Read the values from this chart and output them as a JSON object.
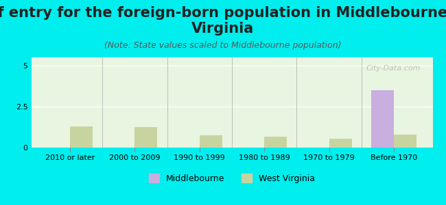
{
  "title": "Year of entry for the foreign-born population in Middlebourne, West\nVirginia",
  "subtitle": "(Note: State values scaled to Middlebourne population)",
  "categories": [
    "2010 or later",
    "2000 to 2009",
    "1990 to 1999",
    "1980 to 1989",
    "1970 to 1979",
    "Before 1970"
  ],
  "middlebourne_values": [
    0,
    0,
    0,
    0,
    0,
    3.5
  ],
  "west_virginia_values": [
    1.3,
    1.25,
    0.75,
    0.65,
    0.55,
    0.8
  ],
  "middlebourne_color": "#c9aee0",
  "west_virginia_color": "#c8d4a0",
  "background_color": "#00eeee",
  "plot_bg_start": "#e8f5e0",
  "plot_bg_end": "#f5fff0",
  "ylim": [
    0,
    5.5
  ],
  "yticks": [
    0,
    2.5,
    5
  ],
  "bar_width": 0.35,
  "watermark": "City-Data.com",
  "title_fontsize": 15,
  "subtitle_fontsize": 9,
  "tick_fontsize": 8,
  "legend_fontsize": 9
}
